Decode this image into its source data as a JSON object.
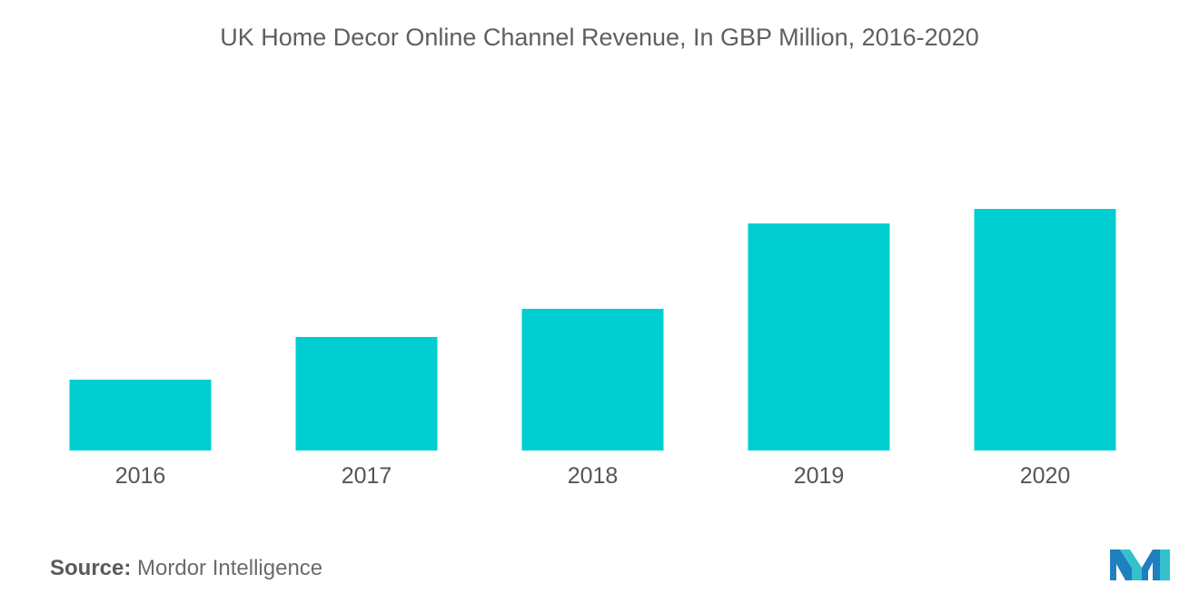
{
  "chart_data": {
    "type": "bar",
    "title": "UK Home Decor Online Channel Revenue, In GBP Million, 2016-2020",
    "categories": [
      "2016",
      "2017",
      "2018",
      "2019",
      "2020"
    ],
    "values": [
      78,
      125,
      156,
      250,
      266
    ],
    "ylim": [
      0,
      300
    ],
    "grid": false,
    "legend": "none",
    "colors": {
      "bar": "#00CED1",
      "text": "#5f5f5f"
    }
  },
  "source": {
    "label": "Source:",
    "text": "Mordor Intelligence"
  },
  "logo": {
    "icon": "mordor-intelligence-logo-icon",
    "colors": [
      "#1f7fbf",
      "#33c1cc"
    ]
  }
}
